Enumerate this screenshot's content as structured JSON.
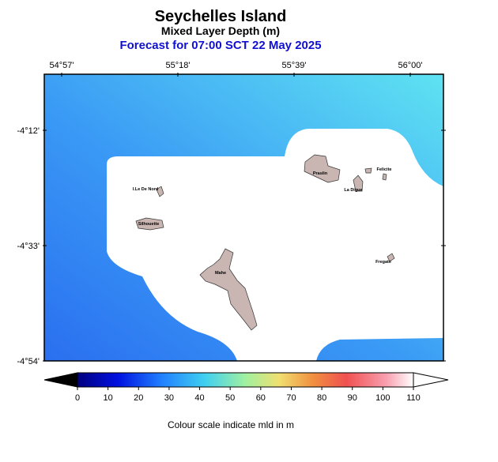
{
  "header": {
    "title": "Seychelles Island",
    "subtitle": "Mixed Layer Depth (m)",
    "forecast": "Forecast for  07:00 SCT 22 May 2025"
  },
  "map": {
    "lon_labels": [
      "54°57'",
      "55°18'",
      "55°39'",
      "56°00'"
    ],
    "lat_labels": [
      "-4°12'",
      "-4°33'",
      "-4°54'"
    ],
    "places": [
      "I.Le De Nord",
      "Silhouette",
      "Mahe",
      "Praslin",
      "Felicite",
      "La Digue",
      "Fregate"
    ]
  },
  "colorbar": {
    "lim": [
      0,
      110
    ],
    "ticks": [
      0,
      10,
      20,
      30,
      40,
      50,
      60,
      70,
      80,
      90,
      100,
      110
    ],
    "caption": "Colour scale indicate mld in m"
  }
}
